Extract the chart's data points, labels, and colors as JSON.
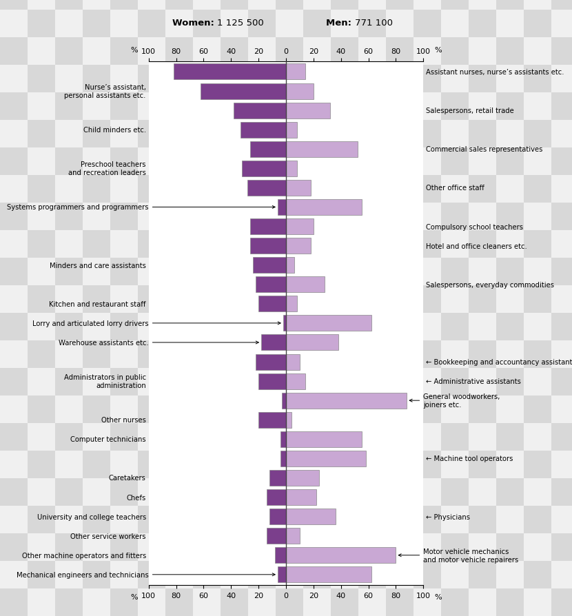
{
  "title_women": "Women: 1 125 500",
  "title_men": "Men: 771 100",
  "women_color": "#7b3f8c",
  "men_color": "#c9a8d4",
  "checker_light": "#e8e8e8",
  "checker_dark": "#d0d0d0",
  "jobs": [
    {
      "label_left": "",
      "label_right": "Assistant nurses, nurse’s assistants etc.",
      "women": 82,
      "men": 14,
      "label_side": "right",
      "arrow_left": false,
      "arrow_right": false
    },
    {
      "label_left": "Nurse’s assistant,\npersonal assistants etc.",
      "label_right": "",
      "women": 62,
      "men": 20,
      "label_side": "left",
      "arrow_left": false,
      "arrow_right": false
    },
    {
      "label_left": "",
      "label_right": "Salespersons, retail trade",
      "women": 38,
      "men": 32,
      "label_side": "right",
      "arrow_left": false,
      "arrow_right": false
    },
    {
      "label_left": "Child minders etc.",
      "label_right": "",
      "women": 33,
      "men": 8,
      "label_side": "left",
      "arrow_left": false,
      "arrow_right": false
    },
    {
      "label_left": "",
      "label_right": "Commercial sales representatives",
      "women": 26,
      "men": 52,
      "label_side": "right",
      "arrow_left": false,
      "arrow_right": false
    },
    {
      "label_left": "Preschool teachers\nand recreation leaders",
      "label_right": "",
      "women": 32,
      "men": 8,
      "label_side": "left",
      "arrow_left": false,
      "arrow_right": false
    },
    {
      "label_left": "",
      "label_right": "Other office staff",
      "women": 28,
      "men": 18,
      "label_side": "right",
      "arrow_left": false,
      "arrow_right": false
    },
    {
      "label_left": "Systems programmers and programmers",
      "label_right": "",
      "women": 6,
      "men": 55,
      "label_side": "left",
      "arrow_left": true,
      "arrow_right": false
    },
    {
      "label_left": "",
      "label_right": "Compulsory school teachers",
      "women": 26,
      "men": 20,
      "label_side": "right",
      "arrow_left": false,
      "arrow_right": false
    },
    {
      "label_left": "",
      "label_right": "Hotel and office cleaners etc.",
      "women": 26,
      "men": 18,
      "label_side": "right",
      "arrow_left": false,
      "arrow_right": false
    },
    {
      "label_left": "Minders and care assistants",
      "label_right": "",
      "women": 24,
      "men": 6,
      "label_side": "left",
      "arrow_left": false,
      "arrow_right": false
    },
    {
      "label_left": "",
      "label_right": "Salespersons, everyday commodities",
      "women": 22,
      "men": 28,
      "label_side": "right",
      "arrow_left": false,
      "arrow_right": false
    },
    {
      "label_left": "Kitchen and restaurant staff",
      "label_right": "",
      "women": 20,
      "men": 8,
      "label_side": "left",
      "arrow_left": false,
      "arrow_right": false
    },
    {
      "label_left": "Lorry and articulated lorry drivers",
      "label_right": "",
      "women": 2,
      "men": 62,
      "label_side": "left",
      "arrow_left": true,
      "arrow_right": false
    },
    {
      "label_left": "Warehouse assistants etc.",
      "label_right": "",
      "women": 18,
      "men": 38,
      "label_side": "left",
      "arrow_left": true,
      "arrow_right": false
    },
    {
      "label_left": "",
      "label_right": "← Bookkeeping and accountancy assistants",
      "women": 22,
      "men": 10,
      "label_side": "right",
      "arrow_left": false,
      "arrow_right": false
    },
    {
      "label_left": "Administrators in public\nadministration",
      "label_right": "← Administrative assistants",
      "women": 20,
      "men": 14,
      "label_side": "both",
      "arrow_left": false,
      "arrow_right": false
    },
    {
      "label_left": "",
      "label_right": "General woodworkers,\njoiners etc.",
      "women": 3,
      "men": 88,
      "label_side": "right",
      "arrow_left": false,
      "arrow_right": true
    },
    {
      "label_left": "Other nurses",
      "label_right": "",
      "women": 20,
      "men": 4,
      "label_side": "left",
      "arrow_left": false,
      "arrow_right": false
    },
    {
      "label_left": "Computer technicians",
      "label_right": "",
      "women": 4,
      "men": 55,
      "label_side": "left",
      "arrow_left": false,
      "arrow_right": false
    },
    {
      "label_left": "",
      "label_right": "← Machine tool operators",
      "women": 4,
      "men": 58,
      "label_side": "right",
      "arrow_left": false,
      "arrow_right": false
    },
    {
      "label_left": "Caretakers",
      "label_right": "",
      "women": 12,
      "men": 24,
      "label_side": "left",
      "arrow_left": false,
      "arrow_right": false
    },
    {
      "label_left": "Chefs",
      "label_right": "",
      "women": 14,
      "men": 22,
      "label_side": "left",
      "arrow_left": false,
      "arrow_right": false
    },
    {
      "label_left": "University and college teachers",
      "label_right": "← Physicians",
      "women": 12,
      "men": 36,
      "label_side": "both",
      "arrow_left": false,
      "arrow_right": false
    },
    {
      "label_left": "Other service workers",
      "label_right": "",
      "women": 14,
      "men": 10,
      "label_side": "left",
      "arrow_left": false,
      "arrow_right": false
    },
    {
      "label_left": "Other machine operators and fitters",
      "label_right": "Motor vehicle mechanics\nand motor vehicle repairers",
      "women": 8,
      "men": 80,
      "label_side": "both",
      "arrow_left": false,
      "arrow_right": true
    },
    {
      "label_left": "Mechanical engineers and technicians",
      "label_right": "",
      "women": 6,
      "men": 62,
      "label_side": "left",
      "arrow_left": true,
      "arrow_right": false
    }
  ]
}
